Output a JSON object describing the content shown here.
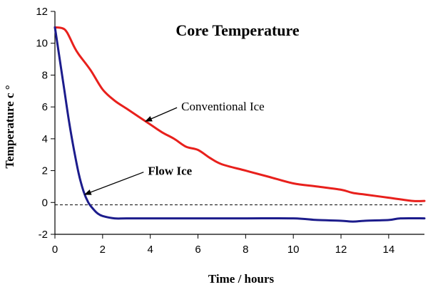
{
  "chart_data": {
    "type": "line",
    "title": "Core Temperature",
    "xlabel": "Time / hours",
    "ylabel": "Temperature c °",
    "xlim": [
      0,
      15.5
    ],
    "ylim": [
      -2,
      12
    ],
    "x_ticks": [
      0,
      2,
      4,
      6,
      8,
      10,
      12,
      14
    ],
    "y_ticks": [
      -2,
      0,
      2,
      4,
      6,
      8,
      10,
      12
    ],
    "grid": false,
    "legend": "none",
    "reference_line": {
      "y": -0.15,
      "style": "dashed"
    },
    "series": [
      {
        "name": "Conventional Ice",
        "color": "#e8201c",
        "x": [
          0,
          0.3,
          0.5,
          0.8,
          1.0,
          1.5,
          2.0,
          2.5,
          3.0,
          3.5,
          4.0,
          4.5,
          5.0,
          5.5,
          6.0,
          6.5,
          7.0,
          8.0,
          9.0,
          10.0,
          11.0,
          12.0,
          12.5,
          13.0,
          14.0,
          15.0,
          15.5
        ],
        "y": [
          11.0,
          10.95,
          10.7,
          9.8,
          9.3,
          8.3,
          7.1,
          6.4,
          5.9,
          5.4,
          4.9,
          4.4,
          4.0,
          3.5,
          3.3,
          2.8,
          2.4,
          2.0,
          1.6,
          1.2,
          1.0,
          0.8,
          0.6,
          0.5,
          0.3,
          0.1,
          0.1
        ]
      },
      {
        "name": "Flow Ice",
        "color": "#1c1c8c",
        "x": [
          0,
          0.2,
          0.4,
          0.6,
          0.8,
          1.0,
          1.2,
          1.4,
          1.6,
          1.8,
          2.0,
          2.5,
          3.0,
          4.0,
          6.0,
          8.0,
          10.0,
          11.0,
          12.0,
          12.5,
          13.0,
          14.0,
          14.5,
          15.5
        ],
        "y": [
          11.0,
          9.0,
          7.0,
          5.0,
          3.3,
          1.8,
          0.7,
          0.0,
          -0.4,
          -0.7,
          -0.85,
          -1.0,
          -1.0,
          -1.0,
          -1.0,
          -1.0,
          -1.0,
          -1.1,
          -1.15,
          -1.2,
          -1.15,
          -1.1,
          -1.0,
          -1.0
        ]
      }
    ],
    "annotations": [
      {
        "text": "Conventional Ice",
        "weight": "normal",
        "target": [
          3.8,
          5.1
        ],
        "text_at": [
          5.3,
          6.0
        ]
      },
      {
        "text": "Flow Ice",
        "weight": "bold",
        "target": [
          1.25,
          0.5
        ],
        "text_at": [
          3.9,
          1.95
        ]
      }
    ]
  }
}
